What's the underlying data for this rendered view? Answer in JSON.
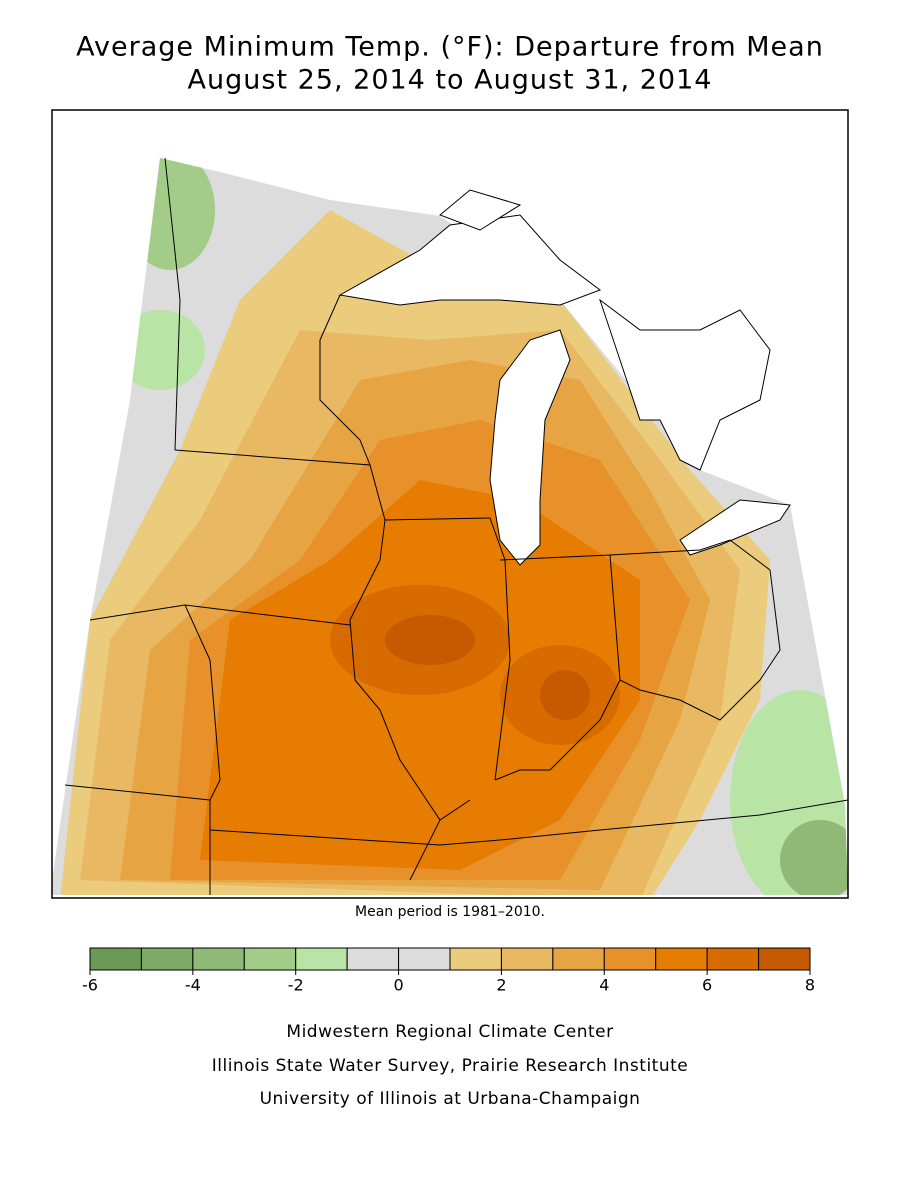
{
  "title": [
    "Average Minimum Temp. (°F): Departure from Mean",
    "August 25, 2014 to August 31, 2014"
  ],
  "note": "Mean period is 1981–2010.",
  "legend": {
    "bounds": [
      -6,
      -5,
      -4,
      -3,
      -2,
      -1,
      0,
      1,
      2,
      3,
      4,
      5,
      6,
      7,
      8
    ],
    "colors": [
      "#6b9a57",
      "#7ea968",
      "#90b977",
      "#a3cc88",
      "#b8e4a6",
      "#dcdcdc",
      "#dcdcdc",
      "#ebcb7c",
      "#e9b862",
      "#e7a443",
      "#e8902a",
      "#e77c02",
      "#d86b00",
      "#c65a00"
    ],
    "ticks": [
      -6,
      -4,
      -2,
      0,
      2,
      4,
      6,
      8
    ]
  },
  "credits": [
    "Midwestern Regional Climate Center",
    "Illinois State Water Survey, Prairie Research Institute",
    "University of Illinois at Urbana-Champaign"
  ]
}
